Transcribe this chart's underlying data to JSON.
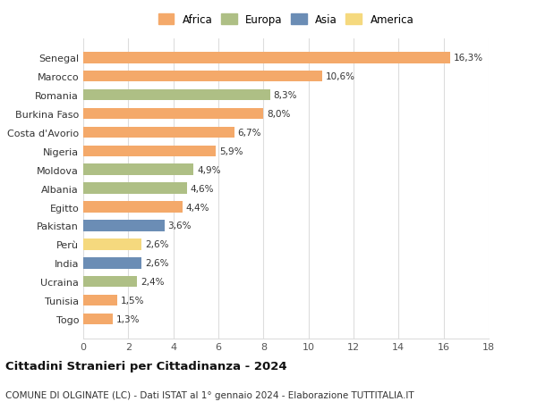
{
  "categories": [
    "Togo",
    "Tunisia",
    "Ucraina",
    "India",
    "Perù",
    "Pakistan",
    "Egitto",
    "Albania",
    "Moldova",
    "Nigeria",
    "Costa d'Avorio",
    "Burkina Faso",
    "Romania",
    "Marocco",
    "Senegal"
  ],
  "values": [
    1.3,
    1.5,
    2.4,
    2.6,
    2.6,
    3.6,
    4.4,
    4.6,
    4.9,
    5.9,
    6.7,
    8.0,
    8.3,
    10.6,
    16.3
  ],
  "labels": [
    "1,3%",
    "1,5%",
    "2,4%",
    "2,6%",
    "2,6%",
    "3,6%",
    "4,4%",
    "4,6%",
    "4,9%",
    "5,9%",
    "6,7%",
    "8,0%",
    "8,3%",
    "10,6%",
    "16,3%"
  ],
  "continents": [
    "Africa",
    "Africa",
    "Europa",
    "Asia",
    "America",
    "Asia",
    "Africa",
    "Europa",
    "Europa",
    "Africa",
    "Africa",
    "Africa",
    "Europa",
    "Africa",
    "Africa"
  ],
  "continent_colors": {
    "Africa": "#F4A96A",
    "Europa": "#AEBF85",
    "Asia": "#6B8DB5",
    "America": "#F5D97E"
  },
  "legend_order": [
    "Africa",
    "Europa",
    "Asia",
    "America"
  ],
  "title": "Cittadini Stranieri per Cittadinanza - 2024",
  "subtitle": "COMUNE DI OLGINATE (LC) - Dati ISTAT al 1° gennaio 2024 - Elaborazione TUTTITALIA.IT",
  "xlim": [
    0,
    18
  ],
  "xticks": [
    0,
    2,
    4,
    6,
    8,
    10,
    12,
    14,
    16,
    18
  ],
  "background_color": "#ffffff",
  "grid_color": "#dddddd",
  "bar_height": 0.6,
  "title_fontsize": 9.5,
  "subtitle_fontsize": 7.5,
  "label_fontsize": 7.5,
  "tick_fontsize": 8,
  "legend_fontsize": 8.5
}
